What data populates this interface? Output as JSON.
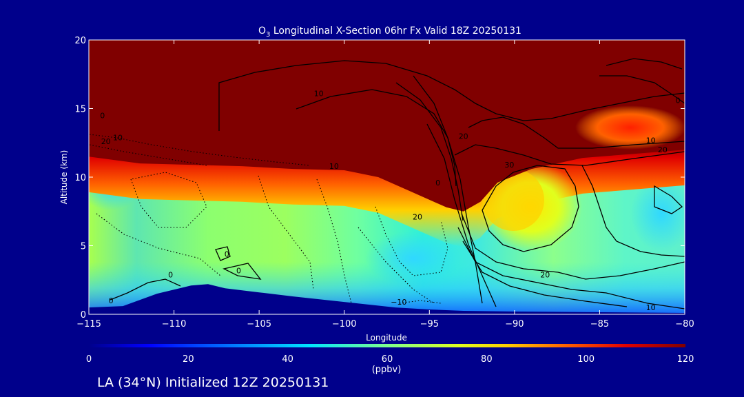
{
  "chart_data": {
    "type": "heatmap",
    "title_prefix": "O",
    "title_sub": "3",
    "title_rest": " Longitudinal X-Section 06hr  Fx Valid 18Z 20250131",
    "xlabel": "Longitude",
    "ylabel": "Altitude (km)",
    "xlim": [
      -115,
      -80
    ],
    "ylim": [
      0,
      20
    ],
    "x_ticks": [
      -115,
      -110,
      -105,
      -100,
      -95,
      -90,
      -85,
      -80
    ],
    "x_tick_labels": [
      "−115",
      "−110",
      "−105",
      "−100",
      "−95",
      "−90",
      "−85",
      "−80"
    ],
    "y_ticks": [
      0,
      5,
      10,
      15,
      20
    ],
    "y_tick_labels": [
      "0",
      "5",
      "10",
      "15",
      "20"
    ],
    "colorbar": {
      "range": [
        0,
        120
      ],
      "ticks": [
        0,
        20,
        40,
        60,
        80,
        100,
        120
      ],
      "tick_labels": [
        "0",
        "20",
        "40",
        "60",
        "80",
        "100",
        "120"
      ],
      "unit": "(ppbv)"
    },
    "terrain_km": [
      [
        -115,
        0.5
      ],
      [
        -113,
        0.6
      ],
      [
        -111,
        1.5
      ],
      [
        -109,
        2.1
      ],
      [
        -108,
        2.2
      ],
      [
        -107,
        1.9
      ],
      [
        -105,
        1.6
      ],
      [
        -103,
        1.3
      ],
      [
        -100,
        0.9
      ],
      [
        -97,
        0.5
      ],
      [
        -95,
        0.35
      ],
      [
        -93,
        0.25
      ],
      [
        -90,
        0.2
      ],
      [
        -85,
        0.15
      ],
      [
        -80,
        0.1
      ]
    ],
    "tropopause_km": [
      [
        -115,
        11.5
      ],
      [
        -112,
        11.0
      ],
      [
        -109,
        10.9
      ],
      [
        -106,
        10.8
      ],
      [
        -103,
        10.6
      ],
      [
        -100,
        10.5
      ],
      [
        -98,
        10.0
      ],
      [
        -96,
        8.9
      ],
      [
        -94,
        7.8
      ],
      [
        -93,
        7.5
      ],
      [
        -92,
        8.2
      ],
      [
        -91,
        9.6
      ],
      [
        -89,
        10.6
      ],
      [
        -86,
        11.4
      ],
      [
        -83,
        11.7
      ],
      [
        -80,
        12.0
      ]
    ],
    "contour_labels": [
      {
        "text": "0",
        "lon": -114.2,
        "alt": 14.3
      },
      {
        "text": "10",
        "lon": -113.3,
        "alt": 12.7
      },
      {
        "text": "20",
        "lon": -114.0,
        "alt": 12.4
      },
      {
        "text": "10",
        "lon": -101.5,
        "alt": 15.9
      },
      {
        "text": "10",
        "lon": -100.6,
        "alt": 10.6
      },
      {
        "text": "0",
        "lon": -94.5,
        "alt": 9.4
      },
      {
        "text": "20",
        "lon": -93.0,
        "alt": 12.8
      },
      {
        "text": "20",
        "lon": -95.7,
        "alt": 6.9
      },
      {
        "text": "30",
        "lon": -90.3,
        "alt": 10.7
      },
      {
        "text": "20",
        "lon": -88.2,
        "alt": 2.7
      },
      {
        "text": "10",
        "lon": -82.0,
        "alt": 12.5
      },
      {
        "text": "20",
        "lon": -81.3,
        "alt": 11.8
      },
      {
        "text": "0",
        "lon": -80.4,
        "alt": 15.4
      },
      {
        "text": "0",
        "lon": -106.9,
        "alt": 4.2
      },
      {
        "text": "0",
        "lon": -106.2,
        "alt": 3.0
      },
      {
        "text": "0",
        "lon": -110.2,
        "alt": 2.7
      },
      {
        "text": "0",
        "lon": -113.7,
        "alt": 0.8
      },
      {
        "text": "−10",
        "lon": -96.8,
        "alt": 0.7
      },
      {
        "text": "10",
        "lon": -82.0,
        "alt": 0.3
      }
    ]
  },
  "footer": {
    "caption": "LA (34°N) Initialized 12Z 20250131"
  },
  "colors": {
    "background": "#00008b",
    "stratosphere": "#800000",
    "terrain": "#00008b"
  }
}
